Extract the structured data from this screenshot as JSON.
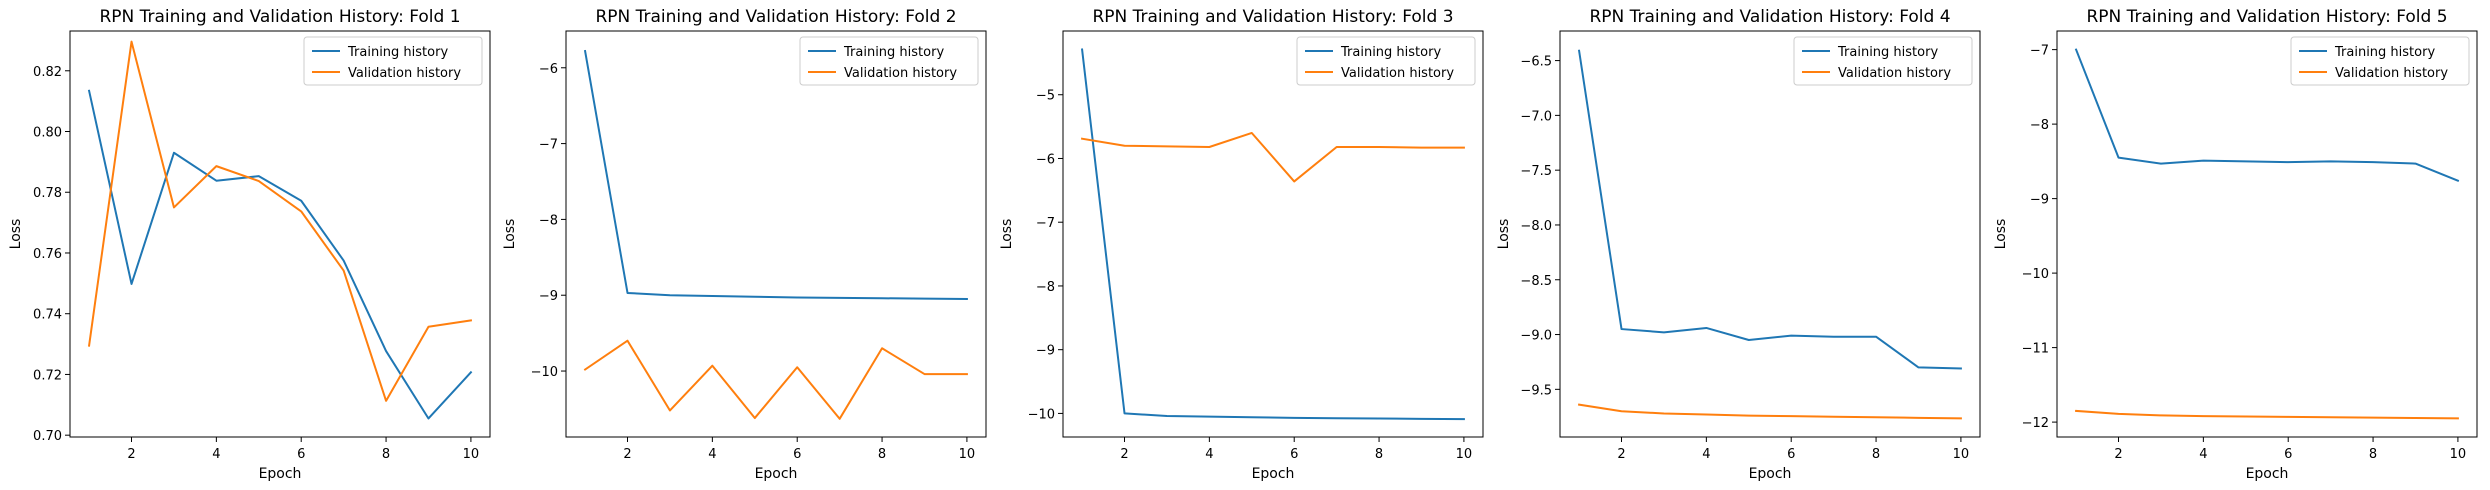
{
  "chart_data": [
    {
      "type": "line",
      "title": "RPN Training and Validation History: Fold 1",
      "xlabel": "Epoch",
      "ylabel": "Loss",
      "xlim": [
        0.55,
        10.45
      ],
      "ylim": [
        0.6994,
        0.8331
      ],
      "xticks": [
        2,
        4,
        6,
        8,
        10
      ],
      "xtick_labels": [
        "2",
        "4",
        "6",
        "8",
        "10"
      ],
      "yticks": [
        0.7,
        0.72,
        0.74,
        0.76,
        0.78,
        0.8,
        0.82
      ],
      "ytick_labels": [
        "0.70",
        "0.72",
        "0.74",
        "0.76",
        "0.78",
        "0.80",
        "0.82"
      ],
      "x": [
        1,
        2,
        3,
        4,
        5,
        6,
        7,
        8,
        9,
        10
      ],
      "series": [
        {
          "name": "Training history",
          "color": "#1f77b4",
          "values": [
            0.8134,
            0.7498,
            0.793,
            0.7838,
            0.7853,
            0.7772,
            0.7575,
            0.7277,
            0.7055,
            0.7207
          ]
        },
        {
          "name": "Validation history",
          "color": "#ff7f0e",
          "values": [
            0.7295,
            0.8296,
            0.775,
            0.7886,
            0.7837,
            0.7737,
            0.7542,
            0.7113,
            0.7357,
            0.7378
          ]
        }
      ],
      "legend": "top-right",
      "grid": false
    },
    {
      "type": "line",
      "title": "RPN Training and Validation History: Fold 2",
      "xlabel": "Epoch",
      "ylabel": "Loss",
      "xlim": [
        0.55,
        10.45
      ],
      "ylim": [
        -10.87,
        -5.515
      ],
      "xticks": [
        2,
        4,
        6,
        8,
        10
      ],
      "xtick_labels": [
        "2",
        "4",
        "6",
        "8",
        "10"
      ],
      "yticks": [
        -10,
        -9,
        -8,
        -7,
        -6
      ],
      "ytick_labels": [
        "−10",
        "−9",
        "−8",
        "−7",
        "−6"
      ],
      "x": [
        1,
        2,
        3,
        4,
        5,
        6,
        7,
        8,
        9,
        10
      ],
      "series": [
        {
          "name": "Training history",
          "color": "#1f77b4",
          "values": [
            -5.78,
            -8.97,
            -9.0,
            -9.01,
            -9.02,
            -9.03,
            -9.035,
            -9.04,
            -9.045,
            -9.05
          ]
        },
        {
          "name": "Validation history",
          "color": "#ff7f0e",
          "values": [
            -9.98,
            -9.6,
            -10.52,
            -9.93,
            -10.62,
            -9.95,
            -10.63,
            -9.7,
            -10.04,
            -10.04
          ]
        }
      ],
      "legend": "top-right",
      "grid": false
    },
    {
      "type": "line",
      "title": "RPN Training and Validation History: Fold 3",
      "xlabel": "Epoch",
      "ylabel": "Loss",
      "xlim": [
        0.55,
        10.45
      ],
      "ylim": [
        -10.37,
        -4.0
      ],
      "xticks": [
        2,
        4,
        6,
        8,
        10
      ],
      "xtick_labels": [
        "2",
        "4",
        "6",
        "8",
        "10"
      ],
      "yticks": [
        -10,
        -9,
        -8,
        -7,
        -6,
        -5
      ],
      "ytick_labels": [
        "−10",
        "−9",
        "−8",
        "−7",
        "−6",
        "−5"
      ],
      "x": [
        1,
        2,
        3,
        4,
        5,
        6,
        7,
        8,
        9,
        10
      ],
      "series": [
        {
          "name": "Training history",
          "color": "#1f77b4",
          "values": [
            -4.29,
            -10.0,
            -10.04,
            -10.05,
            -10.06,
            -10.07,
            -10.075,
            -10.08,
            -10.085,
            -10.09
          ]
        },
        {
          "name": "Validation history",
          "color": "#ff7f0e",
          "values": [
            -5.69,
            -5.8,
            -5.81,
            -5.82,
            -5.6,
            -6.36,
            -5.82,
            -5.82,
            -5.83,
            -5.83
          ]
        }
      ],
      "legend": "top-right",
      "grid": false
    },
    {
      "type": "line",
      "title": "RPN Training and Validation History: Fold 4",
      "xlabel": "Epoch",
      "ylabel": "Loss",
      "xlim": [
        0.55,
        10.45
      ],
      "ylim": [
        -9.935,
        -6.23
      ],
      "xticks": [
        2,
        4,
        6,
        8,
        10
      ],
      "xtick_labels": [
        "2",
        "4",
        "6",
        "8",
        "10"
      ],
      "yticks": [
        -9.5,
        -9.0,
        -8.5,
        -8.0,
        -7.5,
        -7.0,
        -6.5
      ],
      "ytick_labels": [
        "−9.5",
        "−9.0",
        "−8.5",
        "−8.0",
        "−7.5",
        "−7.0",
        "−6.5"
      ],
      "x": [
        1,
        2,
        3,
        4,
        5,
        6,
        7,
        8,
        9,
        10
      ],
      "series": [
        {
          "name": "Training history",
          "color": "#1f77b4",
          "values": [
            -6.41,
            -8.95,
            -8.98,
            -8.94,
            -9.05,
            -9.01,
            -9.02,
            -9.02,
            -9.3,
            -9.31
          ]
        },
        {
          "name": "Validation history",
          "color": "#ff7f0e",
          "values": [
            -9.64,
            -9.7,
            -9.72,
            -9.73,
            -9.74,
            -9.745,
            -9.75,
            -9.755,
            -9.76,
            -9.765
          ]
        }
      ],
      "legend": "top-right",
      "grid": false
    },
    {
      "type": "line",
      "title": "RPN Training and Validation History: Fold 5",
      "xlabel": "Epoch",
      "ylabel": "Loss",
      "xlim": [
        0.55,
        10.45
      ],
      "ylim": [
        -12.2,
        -6.75
      ],
      "xticks": [
        2,
        4,
        6,
        8,
        10
      ],
      "xtick_labels": [
        "2",
        "4",
        "6",
        "8",
        "10"
      ],
      "yticks": [
        -12,
        -11,
        -10,
        -9,
        -8,
        -7
      ],
      "ytick_labels": [
        "−12",
        "−11",
        "−10",
        "−9",
        "−8",
        "−7"
      ],
      "x": [
        1,
        2,
        3,
        4,
        5,
        6,
        7,
        8,
        9,
        10
      ],
      "series": [
        {
          "name": "Training history",
          "color": "#1f77b4",
          "values": [
            -7.0,
            -8.45,
            -8.53,
            -8.49,
            -8.5,
            -8.51,
            -8.5,
            -8.51,
            -8.53,
            -8.76
          ]
        },
        {
          "name": "Validation history",
          "color": "#ff7f0e",
          "values": [
            -11.85,
            -11.89,
            -11.91,
            -11.92,
            -11.925,
            -11.93,
            -11.935,
            -11.94,
            -11.945,
            -11.95
          ]
        }
      ],
      "legend": "top-right",
      "grid": false
    }
  ]
}
